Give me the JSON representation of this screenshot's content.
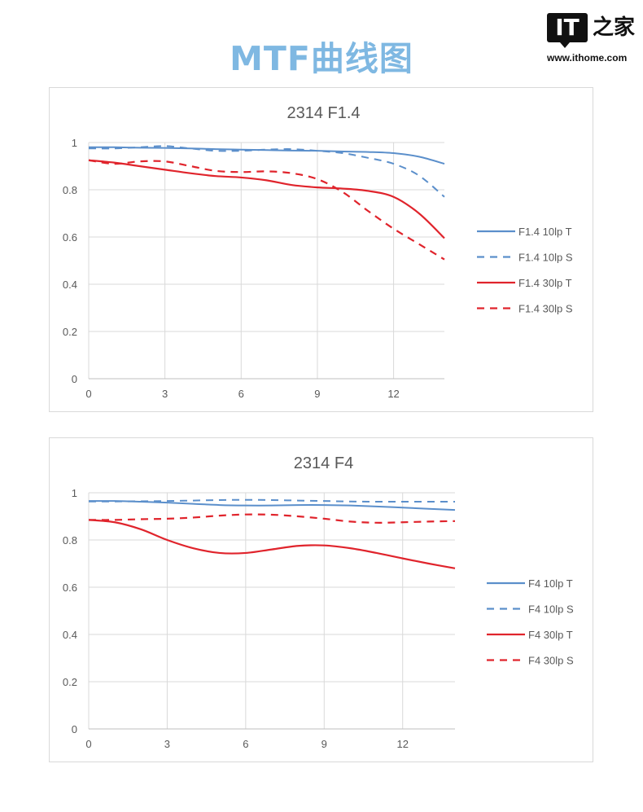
{
  "header": {
    "title": "MTF曲线图",
    "title_color": "#7fb8e2"
  },
  "logo": {
    "mark": "IT",
    "name": "之家",
    "url": "www.ithome.com"
  },
  "colors": {
    "blue": "#5b8fcb",
    "red": "#e0242c",
    "grid": "#d9d9d9"
  },
  "chart_data": [
    {
      "type": "line",
      "title": "2314 F1.4",
      "x": [
        0,
        1,
        2,
        3,
        4,
        5,
        6,
        7,
        8,
        9,
        10,
        11,
        12,
        13,
        14
      ],
      "xticks": [
        0,
        3,
        6,
        9,
        12
      ],
      "yticks": [
        0,
        0.2,
        0.4,
        0.6,
        0.8,
        1
      ],
      "xlim": [
        0,
        14
      ],
      "ylim": [
        0,
        1
      ],
      "grid": true,
      "legend": "right",
      "series": [
        {
          "name": "F1.4 10lp T",
          "color": "blue",
          "dash": false,
          "values": [
            0.98,
            0.98,
            0.978,
            0.977,
            0.975,
            0.972,
            0.97,
            0.968,
            0.966,
            0.965,
            0.962,
            0.96,
            0.955,
            0.94,
            0.91
          ]
        },
        {
          "name": "F1.4 10lp S",
          "color": "blue",
          "dash": true,
          "values": [
            0.975,
            0.975,
            0.98,
            0.985,
            0.975,
            0.965,
            0.965,
            0.97,
            0.972,
            0.965,
            0.955,
            0.935,
            0.91,
            0.86,
            0.77
          ]
        },
        {
          "name": "F1.4 30lp T",
          "color": "red",
          "dash": false,
          "values": [
            0.925,
            0.915,
            0.9,
            0.885,
            0.87,
            0.858,
            0.852,
            0.84,
            0.82,
            0.81,
            0.805,
            0.795,
            0.77,
            0.7,
            0.595
          ]
        },
        {
          "name": "F1.4 30lp S",
          "color": "red",
          "dash": true,
          "values": [
            0.925,
            0.91,
            0.92,
            0.92,
            0.9,
            0.88,
            0.875,
            0.878,
            0.87,
            0.845,
            0.79,
            0.71,
            0.635,
            0.57,
            0.505
          ]
        }
      ]
    },
    {
      "type": "line",
      "title": "2314 F4",
      "x": [
        0,
        1,
        2,
        3,
        4,
        5,
        6,
        7,
        8,
        9,
        10,
        11,
        12,
        13,
        14
      ],
      "xticks": [
        0,
        3,
        6,
        9,
        12
      ],
      "yticks": [
        0,
        0.2,
        0.4,
        0.6,
        0.8,
        1
      ],
      "xlim": [
        0,
        14
      ],
      "ylim": [
        0,
        1
      ],
      "grid": true,
      "legend": "right",
      "series": [
        {
          "name": "F4 10lp T",
          "color": "blue",
          "dash": false,
          "values": [
            0.965,
            0.965,
            0.962,
            0.958,
            0.953,
            0.948,
            0.946,
            0.946,
            0.948,
            0.948,
            0.946,
            0.942,
            0.937,
            0.932,
            0.927
          ]
        },
        {
          "name": "F4 10lp S",
          "color": "blue",
          "dash": true,
          "values": [
            0.963,
            0.963,
            0.964,
            0.965,
            0.967,
            0.969,
            0.97,
            0.969,
            0.967,
            0.965,
            0.963,
            0.962,
            0.962,
            0.962,
            0.962
          ]
        },
        {
          "name": "F4 30lp T",
          "color": "red",
          "dash": false,
          "values": [
            0.885,
            0.875,
            0.845,
            0.8,
            0.765,
            0.745,
            0.745,
            0.76,
            0.775,
            0.777,
            0.765,
            0.745,
            0.722,
            0.7,
            0.68
          ]
        },
        {
          "name": "F4 30lp S",
          "color": "red",
          "dash": true,
          "values": [
            0.885,
            0.885,
            0.888,
            0.89,
            0.895,
            0.903,
            0.908,
            0.907,
            0.9,
            0.89,
            0.878,
            0.873,
            0.875,
            0.878,
            0.88
          ]
        }
      ]
    }
  ]
}
